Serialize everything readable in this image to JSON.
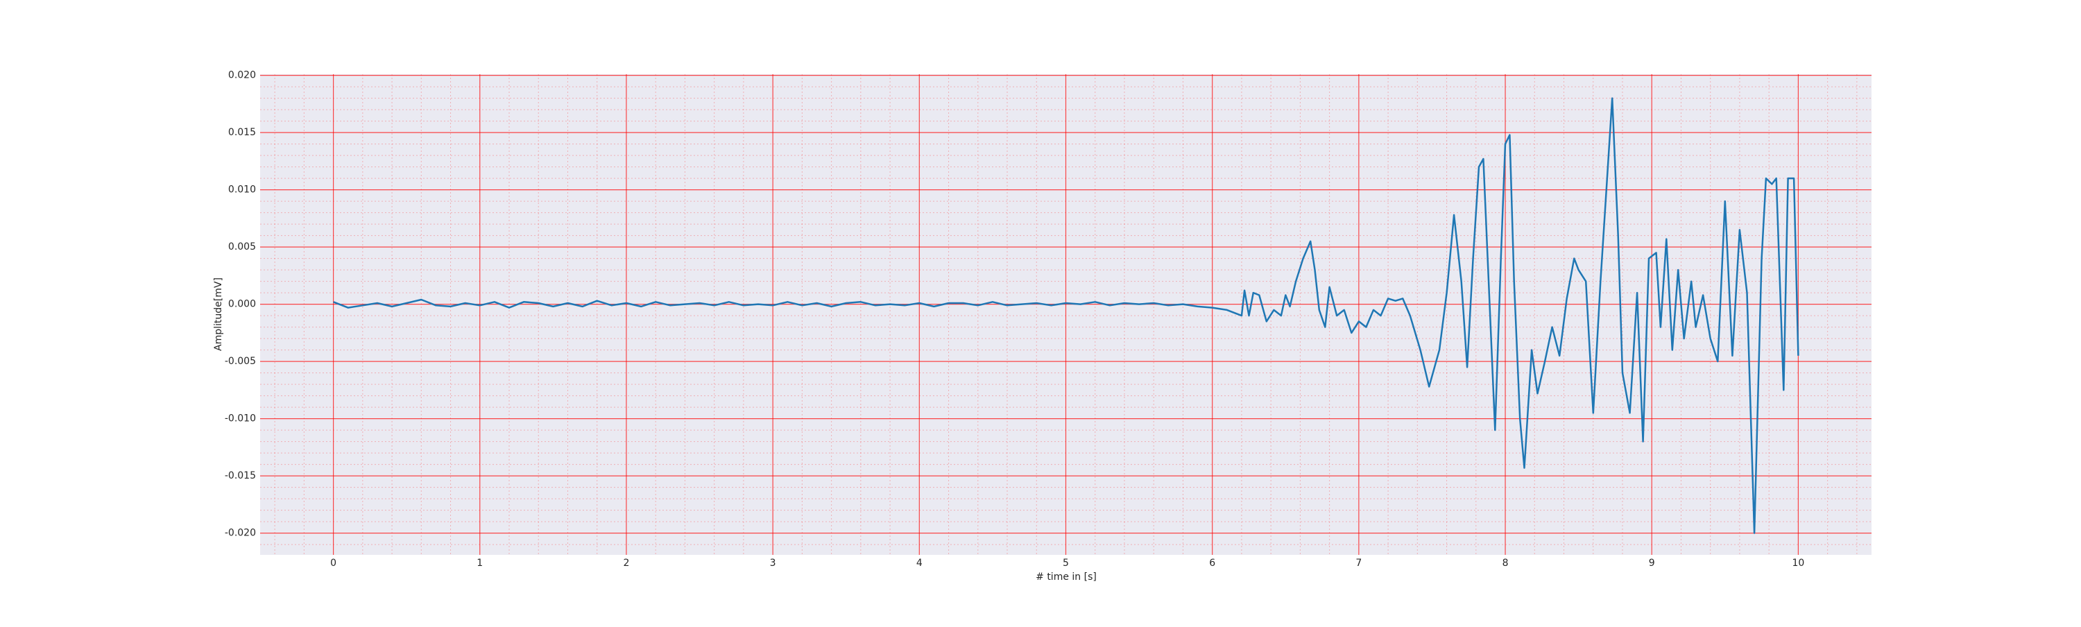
{
  "chart_data": {
    "type": "line",
    "xlabel": "# time in [s]",
    "ylabel": "Amplitude[mV]",
    "x": [
      0,
      0.1,
      0.2,
      0.3,
      0.4,
      0.5,
      0.6,
      0.7,
      0.8,
      0.9,
      1.0,
      1.1,
      1.2,
      1.3,
      1.4,
      1.5,
      1.6,
      1.7,
      1.8,
      1.9,
      2.0,
      2.1,
      2.2,
      2.3,
      2.4,
      2.5,
      2.6,
      2.7,
      2.8,
      2.9,
      3.0,
      3.1,
      3.2,
      3.3,
      3.4,
      3.5,
      3.6,
      3.7,
      3.8,
      3.9,
      4.0,
      4.1,
      4.2,
      4.3,
      4.4,
      4.5,
      4.6,
      4.7,
      4.8,
      4.9,
      5.0,
      5.1,
      5.2,
      5.3,
      5.4,
      5.5,
      5.6,
      5.7,
      5.8,
      5.9,
      6.0,
      6.1,
      6.2,
      6.22,
      6.25,
      6.28,
      6.32,
      6.37,
      6.42,
      6.47,
      6.5,
      6.53,
      6.57,
      6.62,
      6.67,
      6.7,
      6.73,
      6.77,
      6.8,
      6.85,
      6.9,
      6.95,
      7.0,
      7.05,
      7.1,
      7.15,
      7.2,
      7.25,
      7.3,
      7.35,
      7.42,
      7.48,
      7.55,
      7.6,
      7.65,
      7.7,
      7.74,
      7.78,
      7.82,
      7.85,
      7.9,
      7.93,
      7.97,
      8.0,
      8.03,
      8.06,
      8.1,
      8.13,
      8.18,
      8.22,
      8.27,
      8.32,
      8.37,
      8.42,
      8.47,
      8.5,
      8.55,
      8.6,
      8.65,
      8.7,
      8.73,
      8.77,
      8.8,
      8.85,
      8.9,
      8.94,
      8.98,
      9.03,
      9.06,
      9.1,
      9.14,
      9.18,
      9.22,
      9.27,
      9.3,
      9.35,
      9.4,
      9.45,
      9.5,
      9.55,
      9.6,
      9.65,
      9.7,
      9.75,
      9.78,
      9.82,
      9.85,
      9.9,
      9.93,
      9.97,
      10.0
    ],
    "values": [
      0.0002,
      -0.0003,
      -0.0001,
      0.0001,
      -0.0002,
      0.0001,
      0.0004,
      -0.0001,
      -0.0002,
      0.0001,
      -0.0001,
      0.0002,
      -0.0003,
      0.0002,
      0.0001,
      -0.0002,
      0.0001,
      -0.0002,
      0.0003,
      -0.0001,
      0.0001,
      -0.0002,
      0.0002,
      -0.0001,
      0.0,
      0.0001,
      -0.0001,
      0.0002,
      -0.0001,
      0.0,
      -0.0001,
      0.0002,
      -0.0001,
      0.0001,
      -0.0002,
      0.0001,
      0.0002,
      -0.0001,
      0.0,
      -0.0001,
      0.0001,
      -0.0002,
      0.0001,
      0.0001,
      -0.0001,
      0.0002,
      -0.0001,
      0.0,
      0.0001,
      -0.0001,
      0.0001,
      0.0,
      0.0002,
      -0.0001,
      0.0001,
      0.0,
      0.0001,
      -0.0001,
      0.0,
      -0.0002,
      -0.0003,
      -0.0005,
      -0.001,
      0.0012,
      -0.001,
      0.001,
      0.0008,
      -0.0015,
      -0.0005,
      -0.001,
      0.0008,
      -0.0002,
      0.002,
      0.004,
      0.0055,
      0.003,
      -0.0005,
      -0.002,
      0.0015,
      -0.001,
      -0.0005,
      -0.0025,
      -0.0015,
      -0.002,
      -0.0005,
      -0.001,
      0.0005,
      0.0003,
      0.0005,
      -0.001,
      -0.004,
      -0.0072,
      -0.004,
      0.001,
      0.0078,
      0.002,
      -0.0055,
      0.004,
      0.012,
      0.0127,
      -0.002,
      -0.011,
      0.004,
      0.014,
      0.0148,
      0.002,
      -0.01,
      -0.0143,
      -0.004,
      -0.0078,
      -0.005,
      -0.002,
      -0.0045,
      0.0005,
      0.004,
      0.003,
      0.002,
      -0.0095,
      0.002,
      0.012,
      0.018,
      0.006,
      -0.006,
      -0.0095,
      0.001,
      -0.012,
      0.004,
      0.0045,
      -0.002,
      0.0057,
      -0.004,
      0.003,
      -0.003,
      0.002,
      -0.002,
      0.0008,
      -0.003,
      -0.005,
      0.009,
      -0.0045,
      0.0065,
      0.001,
      -0.02,
      0.004,
      0.011,
      0.0105,
      0.011,
      -0.0075,
      0.011,
      0.011,
      -0.0045
    ],
    "color": "#1f77b4",
    "xlim": [
      -0.5,
      10.5
    ],
    "xticks": [
      0,
      1,
      2,
      3,
      4,
      5,
      6,
      7,
      8,
      9,
      10
    ],
    "ylim": [
      -0.0219,
      0.0201
    ],
    "yticks": [
      {
        "value": -0.02,
        "label": "-0.020"
      },
      {
        "value": -0.015,
        "label": "-0.015"
      },
      {
        "value": -0.01,
        "label": "-0.010"
      },
      {
        "value": -0.005,
        "label": "-0.005"
      },
      {
        "value": 0,
        "label": "0.000"
      },
      {
        "value": 0.005,
        "label": "0.005"
      },
      {
        "value": 0.01,
        "label": "0.010"
      },
      {
        "value": 0.015,
        "label": "0.015"
      },
      {
        "value": 0.02,
        "label": "0.020"
      }
    ],
    "grid": true,
    "grid_color": "#ff0000",
    "background": "#eaeaf2"
  }
}
